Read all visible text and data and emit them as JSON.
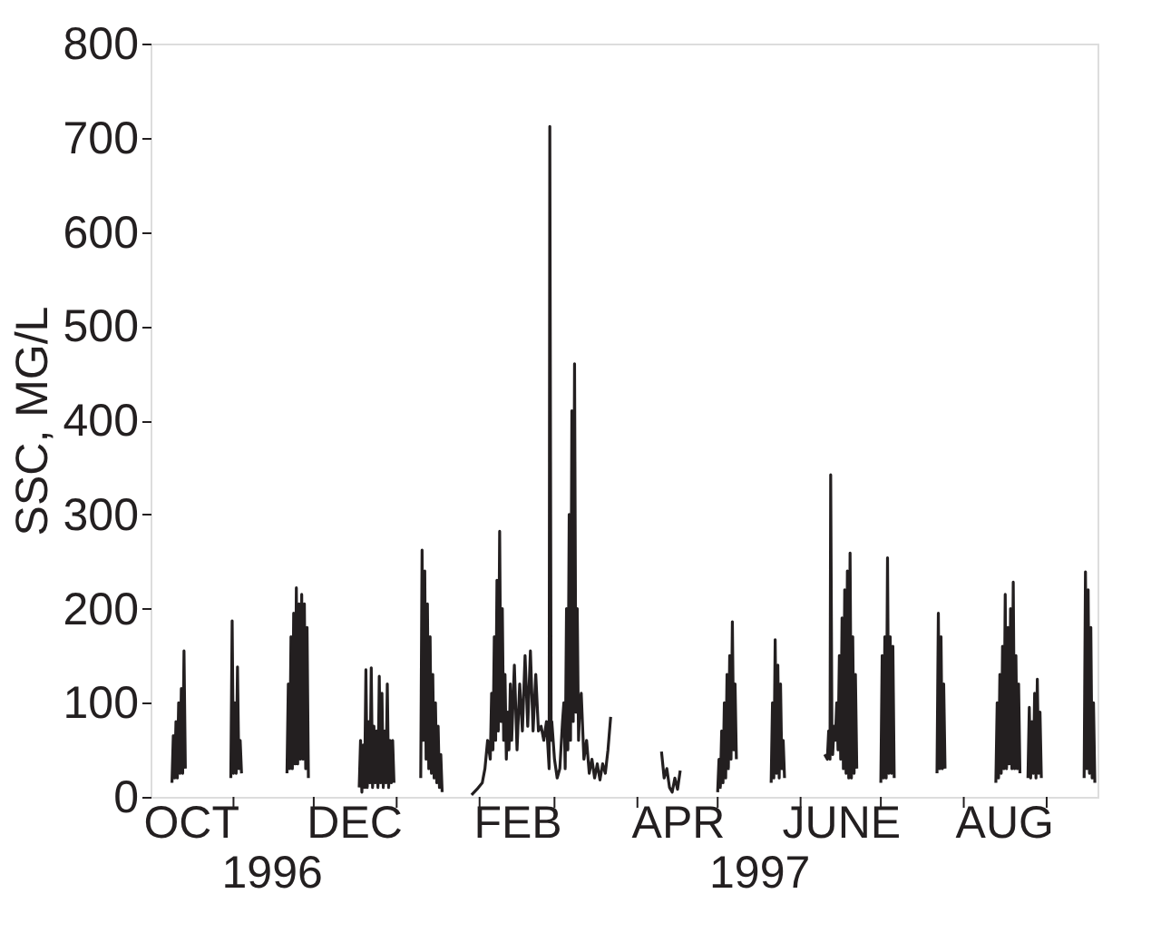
{
  "chart_data": {
    "type": "line",
    "ylabel": "SSC, MG/L",
    "x": [
      "1996-10-09",
      "1996-10-09T12:00",
      "1996-10-10",
      "1996-10-10T12:00",
      "1996-10-11",
      "1996-10-11T12:00",
      "1996-10-12",
      "1996-10-12T12:00",
      "1996-10-13",
      "1996-10-13T12:00",
      "1996-10-14",
      "1996-10-20",
      "1996-10-31",
      "1996-10-31T12:00",
      "1996-11-01",
      "1996-11-01T12:00",
      "1996-11-02",
      "1996-11-02T12:00",
      "1996-11-03",
      "1996-11-03T12:00",
      "1996-11-04",
      "1996-11-10",
      "1996-11-21",
      "1996-11-21T12:00",
      "1996-11-22",
      "1996-11-22T12:00",
      "1996-11-23",
      "1996-11-23T12:00",
      "1996-11-24",
      "1996-11-24T12:00",
      "1996-11-25",
      "1996-11-25T12:00",
      "1996-11-26",
      "1996-11-26T12:00",
      "1996-11-27",
      "1996-11-27T12:00",
      "1996-11-28",
      "1996-11-28T12:00",
      "1996-11-29",
      "1996-12-10",
      "1996-12-18",
      "1996-12-18T12:00",
      "1996-12-19",
      "1996-12-19T12:00",
      "1996-12-20",
      "1996-12-20T12:00",
      "1996-12-21",
      "1996-12-21T12:00",
      "1996-12-22",
      "1996-12-22T12:00",
      "1996-12-23",
      "1996-12-23T12:00",
      "1996-12-24",
      "1996-12-24T12:00",
      "1996-12-25",
      "1996-12-25T12:00",
      "1996-12-26",
      "1996-12-26T12:00",
      "1996-12-27",
      "1996-12-27T12:00",
      "1996-12-28",
      "1996-12-28T12:00",
      "1996-12-29",
      "1996-12-29T12:00",
      "1996-12-30",
      "1996-12-30T12:00",
      "1996-12-31",
      "1997-01-05",
      "1997-01-10",
      "1997-01-10T12:00",
      "1997-01-11",
      "1997-01-11T12:00",
      "1997-01-12",
      "1997-01-12T12:00",
      "1997-01-13",
      "1997-01-13T12:00",
      "1997-01-14",
      "1997-01-14T12:00",
      "1997-01-15",
      "1997-01-15T12:00",
      "1997-01-16",
      "1997-01-16T12:00",
      "1997-01-17",
      "1997-01-17T12:00",
      "1997-01-18",
      "1997-01-24",
      "1997-01-29",
      "1997-01-31",
      "1997-02-02",
      "1997-02-03",
      "1997-02-04",
      "1997-02-05",
      "1997-02-05T12:00",
      "1997-02-06",
      "1997-02-06T12:00",
      "1997-02-07",
      "1997-02-07T12:00",
      "1997-02-08",
      "1997-02-08T12:00",
      "1997-02-09",
      "1997-02-09T12:00",
      "1997-02-10",
      "1997-02-10T12:00",
      "1997-02-11",
      "1997-02-11T12:00",
      "1997-02-12",
      "1997-02-12T12:00",
      "1997-02-13",
      "1997-02-14",
      "1997-02-15",
      "1997-02-16",
      "1997-02-17",
      "1997-02-18",
      "1997-02-19",
      "1997-02-20",
      "1997-02-21",
      "1997-02-22",
      "1997-02-23",
      "1997-02-24",
      "1997-02-25",
      "1997-02-26",
      "1997-02-27",
      "1997-02-27T06:00",
      "1997-02-27T18:00",
      "1997-02-28",
      "1997-03-01",
      "1997-03-02",
      "1997-03-03",
      "1997-03-04",
      "1997-03-04T12:00",
      "1997-03-05",
      "1997-03-05T12:00",
      "1997-03-06",
      "1997-03-06T12:00",
      "1997-03-07",
      "1997-03-07T12:00",
      "1997-03-08",
      "1997-03-08T12:00",
      "1997-03-09",
      "1997-03-09T12:00",
      "1997-03-10",
      "1997-03-10T12:00",
      "1997-03-11",
      "1997-03-12",
      "1997-03-13",
      "1997-03-14",
      "1997-03-15",
      "1997-03-16",
      "1997-03-17",
      "1997-03-18",
      "1997-03-19",
      "1997-03-20",
      "1997-03-21",
      "1997-03-22",
      "1997-04-01",
      "1997-04-10",
      "1997-04-11",
      "1997-04-12",
      "1997-04-13",
      "1997-04-14",
      "1997-04-15",
      "1997-04-16",
      "1997-04-17",
      "1997-04-24",
      "1997-05-01",
      "1997-05-01T12:00",
      "1997-05-02",
      "1997-05-02T12:00",
      "1997-05-03",
      "1997-05-03T12:00",
      "1997-05-04",
      "1997-05-04T12:00",
      "1997-05-05",
      "1997-05-05T12:00",
      "1997-05-06",
      "1997-05-06T12:00",
      "1997-05-07",
      "1997-05-07T12:00",
      "1997-05-08",
      "1997-05-15",
      "1997-05-21",
      "1997-05-21T12:00",
      "1997-05-22",
      "1997-05-22T12:00",
      "1997-05-23",
      "1997-05-23T12:00",
      "1997-05-24",
      "1997-05-24T12:00",
      "1997-05-25",
      "1997-05-25T12:00",
      "1997-05-26",
      "1997-06-02",
      "1997-06-10",
      "1997-06-11",
      "1997-06-11T12:00",
      "1997-06-12",
      "1997-06-12T06:00",
      "1997-06-12T18:00",
      "1997-06-13",
      "1997-06-13T12:00",
      "1997-06-14",
      "1997-06-14T12:00",
      "1997-06-15",
      "1997-06-15T12:00",
      "1997-06-16",
      "1997-06-16T12:00",
      "1997-06-17",
      "1997-06-17T12:00",
      "1997-06-18",
      "1997-06-18T12:00",
      "1997-06-19",
      "1997-06-19T12:00",
      "1997-06-20",
      "1997-06-20T12:00",
      "1997-06-21",
      "1997-06-21T12:00",
      "1997-06-22",
      "1997-06-27",
      "1997-07-01",
      "1997-07-01T12:00",
      "1997-07-02",
      "1997-07-02T12:00",
      "1997-07-03",
      "1997-07-03T12:00",
      "1997-07-04",
      "1997-07-04T12:00",
      "1997-07-05",
      "1997-07-05T12:00",
      "1997-07-06",
      "1997-07-14",
      "1997-07-22",
      "1997-07-22T12:00",
      "1997-07-23",
      "1997-07-23T12:00",
      "1997-07-24",
      "1997-07-24T12:00",
      "1997-07-25",
      "1997-08-05",
      "1997-08-13",
      "1997-08-13T12:00",
      "1997-08-14",
      "1997-08-14T12:00",
      "1997-08-15",
      "1997-08-15T12:00",
      "1997-08-16",
      "1997-08-16T12:00",
      "1997-08-17",
      "1997-08-17T12:00",
      "1997-08-18",
      "1997-08-18T12:00",
      "1997-08-19",
      "1997-08-19T12:00",
      "1997-08-20",
      "1997-08-20T12:00",
      "1997-08-21",
      "1997-08-21T12:00",
      "1997-08-22",
      "1997-08-23T12:00",
      "1997-08-25",
      "1997-08-25T12:00",
      "1997-08-26",
      "1997-08-26T12:00",
      "1997-08-27",
      "1997-08-27T12:00",
      "1997-08-28",
      "1997-08-28T12:00",
      "1997-08-29",
      "1997-08-29T12:00",
      "1997-08-30",
      "1997-09-07",
      "1997-09-15",
      "1997-09-15T12:00",
      "1997-09-16",
      "1997-09-16T12:00",
      "1997-09-17",
      "1997-09-17T12:00",
      "1997-09-18",
      "1997-09-18T12:00",
      "1997-09-19"
    ],
    "series": [
      {
        "color": "#231f20",
        "values": [
          15,
          65,
          20,
          80,
          20,
          100,
          25,
          115,
          25,
          155,
          30,
          null,
          20,
          187,
          25,
          100,
          25,
          138,
          30,
          60,
          25,
          null,
          25,
          120,
          30,
          170,
          30,
          195,
          35,
          222,
          35,
          205,
          40,
          215,
          40,
          205,
          30,
          180,
          20,
          null,
          10,
          60,
          5,
          55,
          10,
          135,
          10,
          80,
          15,
          137,
          10,
          75,
          15,
          70,
          10,
          128,
          15,
          110,
          10,
          70,
          15,
          120,
          10,
          60,
          15,
          60,
          15,
          null,
          20,
          262,
          60,
          240,
          40,
          205,
          30,
          170,
          25,
          130,
          20,
          100,
          15,
          75,
          10,
          45,
          5,
          null,
          2,
          8,
          15,
          30,
          60,
          40,
          110,
          50,
          170,
          60,
          230,
          70,
          282,
          80,
          200,
          60,
          130,
          40,
          90,
          50,
          120,
          60,
          140,
          50,
          120,
          70,
          150,
          75,
          155,
          70,
          130,
          70,
          75,
          60,
          80,
          30,
          712,
          60,
          80,
          40,
          20,
          30,
          80,
          100,
          30,
          200,
          50,
          300,
          60,
          410,
          80,
          460,
          90,
          200,
          60,
          100,
          110,
          40,
          60,
          25,
          40,
          20,
          35,
          18,
          35,
          25,
          50,
          85,
          null,
          48,
          20,
          30,
          10,
          5,
          20,
          8,
          28,
          null,
          5,
          40,
          10,
          70,
          15,
          100,
          20,
          130,
          30,
          150,
          40,
          186,
          50,
          120,
          40,
          null,
          15,
          100,
          20,
          167,
          25,
          140,
          20,
          120,
          30,
          60,
          20,
          null,
          45,
          40,
          70,
          40,
          342,
          50,
          45,
          75,
          60,
          100,
          50,
          150,
          40,
          190,
          30,
          220,
          25,
          240,
          20,
          259,
          20,
          170,
          25,
          130,
          30,
          null,
          15,
          150,
          20,
          170,
          20,
          254,
          25,
          170,
          25,
          160,
          20,
          null,
          25,
          195,
          30,
          170,
          30,
          120,
          30,
          null,
          15,
          100,
          20,
          130,
          25,
          160,
          30,
          215,
          30,
          180,
          35,
          200,
          30,
          228,
          30,
          150,
          30,
          120,
          25,
          null,
          20,
          95,
          20,
          80,
          25,
          110,
          20,
          125,
          25,
          90,
          20,
          null,
          20,
          239,
          30,
          220,
          25,
          180,
          20,
          100,
          15
        ]
      }
    ],
    "xlim": [
      "1996-10-01",
      "1997-09-20"
    ],
    "xticks": [
      {
        "value": "1996-10-16",
        "label": "OCT"
      },
      {
        "value": "1996-11-01",
        "label": null
      },
      {
        "value": "1996-12-01",
        "label": null
      },
      {
        "value": "1996-12-16",
        "label": "DEC"
      },
      {
        "value": "1997-01-01",
        "label": null
      },
      {
        "value": "1997-02-01",
        "label": null
      },
      {
        "value": "1997-02-15",
        "label": "FEB"
      },
      {
        "value": "1997-03-01",
        "label": null
      },
      {
        "value": "1997-04-01",
        "label": null
      },
      {
        "value": "1997-04-16",
        "label": "APR"
      },
      {
        "value": "1997-05-01",
        "label": null
      },
      {
        "value": "1997-06-01",
        "label": null
      },
      {
        "value": "1997-06-16",
        "label": "JUNE"
      },
      {
        "value": "1997-07-01",
        "label": null
      },
      {
        "value": "1997-08-01",
        "label": null
      },
      {
        "value": "1997-08-16",
        "label": "AUG"
      },
      {
        "value": "1997-09-01",
        "label": null
      }
    ],
    "ylim": [
      0,
      800
    ],
    "yticks": [
      0,
      100,
      200,
      300,
      400,
      500,
      600,
      700,
      800
    ],
    "annotations": [
      "1996",
      "1997"
    ],
    "grid": false,
    "legend": false,
    "marker": "none",
    "line_style": "solid"
  }
}
